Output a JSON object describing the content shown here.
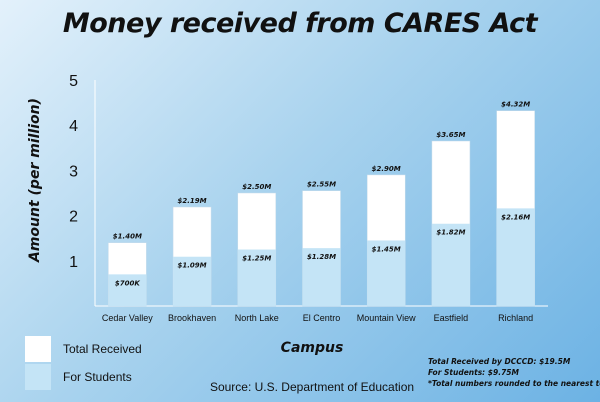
{
  "chart_data": {
    "type": "bar",
    "title": "Money received from CARES Act",
    "xlabel": "Campus",
    "ylabel": "Amount (per million)",
    "ylim": [
      0,
      5
    ],
    "yticks": [
      "1",
      "2",
      "3",
      "4",
      "5"
    ],
    "categories": [
      "Cedar Valley",
      "Brookhaven",
      "North Lake",
      "El Centro",
      "Mountain View",
      "Eastfield",
      "Richland"
    ],
    "series": [
      {
        "name": "Total Received",
        "values": [
          1.4,
          2.19,
          2.5,
          2.55,
          2.9,
          3.65,
          4.32
        ],
        "labels": [
          "$1.40M",
          "$2.19M",
          "$2.50M",
          "$2.55M",
          "$2.90M",
          "$3.65M",
          "$4.32M"
        ],
        "color": "#ffffff"
      },
      {
        "name": "For Students",
        "values": [
          0.7,
          1.09,
          1.25,
          1.28,
          1.45,
          1.82,
          2.16
        ],
        "labels": [
          "$700K",
          "$1.09M",
          "$1.25M",
          "$1.28M",
          "$1.45M",
          "$1.82M",
          "$2.16M"
        ],
        "color": "#c4e4f6"
      }
    ],
    "legend_position": "bottom-left",
    "grid": false,
    "source": "Source: U.S. Department of Education",
    "notes": [
      "Total Received by DCCCD: $19.5M",
      "For Students: $9.75M",
      "*Total numbers rounded to the nearest tenth"
    ]
  }
}
